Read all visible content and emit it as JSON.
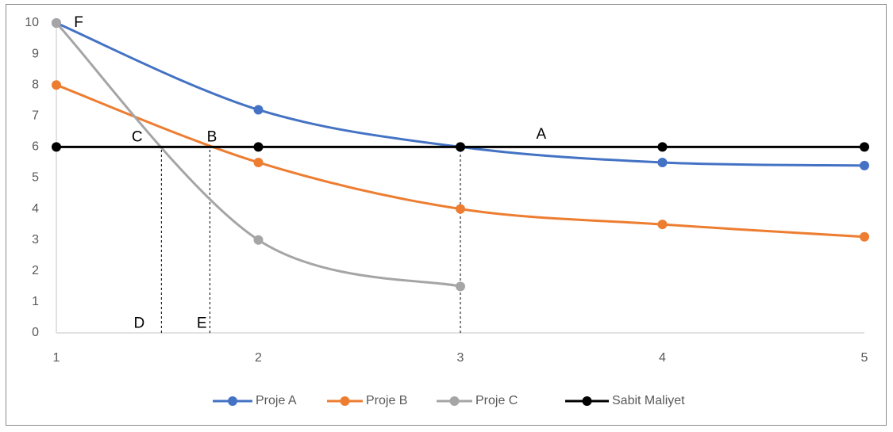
{
  "chart_data": {
    "type": "line",
    "x": [
      1,
      2,
      3,
      4,
      5
    ],
    "xlim": [
      1,
      5
    ],
    "xticks": [
      1,
      2,
      3,
      4,
      5
    ],
    "ylim": [
      0,
      10
    ],
    "yticks": [
      0,
      1,
      2,
      3,
      4,
      5,
      6,
      7,
      8,
      9,
      10
    ],
    "grid": false,
    "smooth": true,
    "legend": "bottom",
    "series": [
      {
        "name": "Proje A",
        "color": "#4472c4",
        "values": [
          10,
          7.2,
          6,
          5.5,
          5.4
        ]
      },
      {
        "name": "Proje B",
        "color": "#ed7d31",
        "values": [
          8,
          5.5,
          4,
          3.5,
          3.1
        ]
      },
      {
        "name": "Proje C",
        "color": "#a5a5a5",
        "values": [
          10,
          3,
          1.5,
          null,
          null
        ]
      },
      {
        "name": "Sabit Maliyet",
        "color": "#000000",
        "values": [
          6,
          6,
          6,
          6,
          6
        ]
      }
    ],
    "reference_lines": [
      {
        "x": 1.52,
        "y": 6
      },
      {
        "x": 1.76,
        "y": 6
      },
      {
        "x": 3,
        "y": 6
      }
    ],
    "annotations": [
      {
        "text": "F",
        "x": 1.11,
        "y": 10
      },
      {
        "text": "C",
        "x": 1.4,
        "y": 6.3
      },
      {
        "text": "B",
        "x": 1.77,
        "y": 6.3
      },
      {
        "text": "A",
        "x": 3.4,
        "y": 6.4
      },
      {
        "text": "D",
        "x": 1.41,
        "y": 0.3
      },
      {
        "text": "E",
        "x": 1.72,
        "y": 0.3
      }
    ]
  }
}
